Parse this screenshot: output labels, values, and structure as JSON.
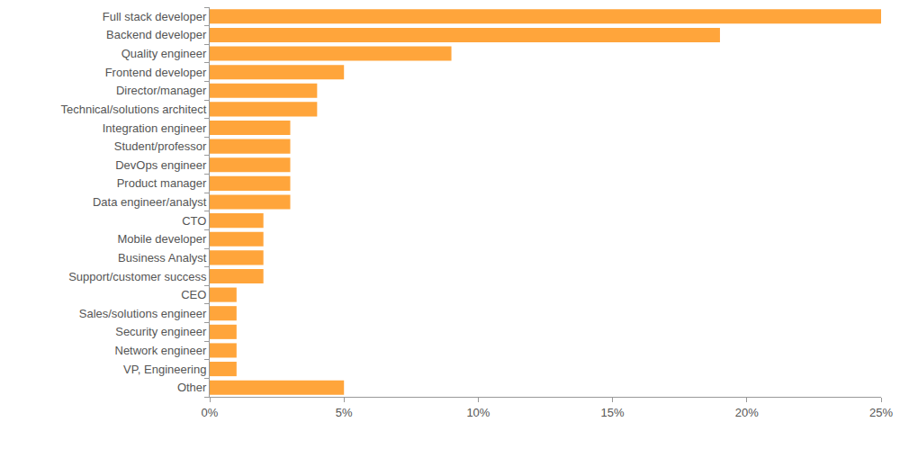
{
  "chart_data": {
    "type": "bar",
    "orientation": "horizontal",
    "categories": [
      "Full stack developer",
      "Backend developer",
      "Quality engineer",
      "Frontend developer",
      "Director/manager",
      "Technical/solutions architect",
      "Integration engineer",
      "Student/professor",
      "DevOps engineer",
      "Product manager",
      "Data engineer/analyst",
      "CTO",
      "Mobile developer",
      "Business Analyst",
      "Support/customer success",
      "CEO",
      "Sales/solutions engineer",
      "Security engineer",
      "Network engineer",
      "VP, Engineering",
      "Other"
    ],
    "values": [
      25,
      19,
      9,
      5,
      4,
      4,
      3,
      3,
      3,
      3,
      3,
      2,
      2,
      2,
      2,
      1,
      1,
      1,
      1,
      1,
      5
    ],
    "color": "#ffa53b",
    "xlim": [
      0,
      25
    ],
    "xticks": [
      {
        "value": 0,
        "label": "0%"
      },
      {
        "value": 5,
        "label": "5%"
      },
      {
        "value": 10,
        "label": "10%"
      },
      {
        "value": 15,
        "label": "15%"
      },
      {
        "value": 20,
        "label": "20%"
      },
      {
        "value": 25,
        "label": "25%"
      }
    ],
    "grid": false
  }
}
